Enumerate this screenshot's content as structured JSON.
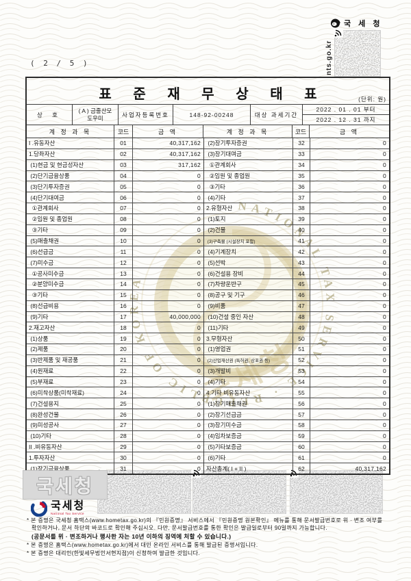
{
  "page": {
    "page_indicator": "( 2 / 5 )",
    "title": "표 준 재 무 상 태 표",
    "unit_label": "(단위: 원)"
  },
  "nts_top": {
    "agency": "국 세 청",
    "url": "nts.go.kr",
    "qr_icon": "qr-code",
    "wifi_icon": "rfid-wave-icon"
  },
  "info": {
    "company_label": "상  호",
    "company_value": "( A ) 금줄산모\n도우미",
    "biz_no_label": "사업자등록번호",
    "biz_no_value": "148-92-00248",
    "period_label": "대상 과세기간",
    "period_from": "2022 . 01 . 01 부터",
    "period_to": "2022 . 12 . 31 까지"
  },
  "table": {
    "header": {
      "account": "계 정 과 목",
      "code": "코드",
      "amount": "금  액"
    },
    "left_rows": [
      {
        "label": "I .유동자산",
        "code": "01",
        "amount": "40,317,162"
      },
      {
        "label": "1.당좌자산",
        "code": "02",
        "amount": "40,317,162"
      },
      {
        "label": " (1)현금 및 현금성자산",
        "code": "03",
        "amount": "317,162"
      },
      {
        "label": " (2)단기금융상품",
        "code": "04",
        "amount": "0"
      },
      {
        "label": " (3)단기투자증권",
        "code": "05",
        "amount": "0"
      },
      {
        "label": " (4)단기대여금",
        "code": "06",
        "amount": "0"
      },
      {
        "label": "  ①관계회사",
        "code": "07",
        "amount": "0"
      },
      {
        "label": "  ②임원 및 종업원",
        "code": "08",
        "amount": "0"
      },
      {
        "label": "  ③기타",
        "code": "09",
        "amount": "0"
      },
      {
        "label": " (5)매출채권",
        "code": "10",
        "amount": "0"
      },
      {
        "label": " (6)선급금",
        "code": "11",
        "amount": "0"
      },
      {
        "label": " (7)미수금",
        "code": "12",
        "amount": "0"
      },
      {
        "label": "  ①공사미수금",
        "code": "13",
        "amount": "0"
      },
      {
        "label": "  ②분양미수금",
        "code": "14",
        "amount": "0"
      },
      {
        "label": "  ③기타",
        "code": "15",
        "amount": "0"
      },
      {
        "label": " (8)선급비용",
        "code": "16",
        "amount": "0"
      },
      {
        "label": " (9)기타",
        "code": "17",
        "amount": "40,000,000"
      },
      {
        "label": "2.재고자산",
        "code": "18",
        "amount": "0"
      },
      {
        "label": " (1)상품",
        "code": "19",
        "amount": "0"
      },
      {
        "label": " (2)제품",
        "code": "20",
        "amount": "0"
      },
      {
        "label": " (3)반제품 및 재공품",
        "code": "21",
        "amount": "0"
      },
      {
        "label": " (4)원재료",
        "code": "22",
        "amount": "0"
      },
      {
        "label": " (5)부재료",
        "code": "23",
        "amount": "0"
      },
      {
        "label": " (6)미착상품(미착재료)",
        "code": "24",
        "amount": "0"
      },
      {
        "label": " (7)건설용지",
        "code": "25",
        "amount": "0"
      },
      {
        "label": " (8)완성건물",
        "code": "26",
        "amount": "0"
      },
      {
        "label": " (9)미성공사",
        "code": "27",
        "amount": "0"
      },
      {
        "label": " (10)기타",
        "code": "28",
        "amount": "0"
      },
      {
        "label": "II .비유동자산",
        "code": "29",
        "amount": "0"
      },
      {
        "label": "1.투자자산",
        "code": "30",
        "amount": "0"
      },
      {
        "label": " (1)장기금융상품",
        "code": "31",
        "amount": "0"
      }
    ],
    "right_rows": [
      {
        "label": " (2)장기투자증권",
        "code": "32",
        "amount": "0"
      },
      {
        "label": " (3)장기대여금",
        "code": "33",
        "amount": "0"
      },
      {
        "label": "  ①관계회사",
        "code": "34",
        "amount": "0"
      },
      {
        "label": "  ②임원 및 종업원",
        "code": "35",
        "amount": "0"
      },
      {
        "label": "  ③기타",
        "code": "36",
        "amount": "0"
      },
      {
        "label": " (4)기타",
        "code": "37",
        "amount": "0"
      },
      {
        "label": "2.유형자산",
        "code": "38",
        "amount": "0"
      },
      {
        "label": " (1)토지",
        "code": "39",
        "amount": "0"
      },
      {
        "label": " (2)건물",
        "code": "40",
        "amount": "0"
      },
      {
        "label": " (3)구축물 (시설장치 포함)",
        "code": "41",
        "amount": "0"
      },
      {
        "label": " (4)기계장치",
        "code": "42",
        "amount": "0"
      },
      {
        "label": " (5)선박",
        "code": "43",
        "amount": "0"
      },
      {
        "label": " (6)건설용 장비",
        "code": "44",
        "amount": "0"
      },
      {
        "label": " (7)차량운반구",
        "code": "45",
        "amount": "0"
      },
      {
        "label": " (8)공구 및 기구",
        "code": "46",
        "amount": "0"
      },
      {
        "label": " (9)비품",
        "code": "47",
        "amount": "0"
      },
      {
        "label": " (10)건설 중인 자산",
        "code": "48",
        "amount": "0"
      },
      {
        "label": " (11)기타",
        "code": "49",
        "amount": "0"
      },
      {
        "label": "3.무형자산",
        "code": "50",
        "amount": "0"
      },
      {
        "label": " (1)영업권",
        "code": "51",
        "amount": "0"
      },
      {
        "label": " (2)산업재산권 (특허권, 상표권 등)",
        "code": "52",
        "amount": "0"
      },
      {
        "label": " (3)개발비",
        "code": "53",
        "amount": "0"
      },
      {
        "label": " (4)기타",
        "code": "54",
        "amount": "0"
      },
      {
        "label": "4.기타 비유동자산",
        "code": "55",
        "amount": "0"
      },
      {
        "label": " (1)장기매출채권",
        "code": "56",
        "amount": "0"
      },
      {
        "label": " (2)장기선급금",
        "code": "57",
        "amount": "0"
      },
      {
        "label": " (3)장기미수금",
        "code": "58",
        "amount": "0"
      },
      {
        "label": " (4)임차보증금",
        "code": "59",
        "amount": "0"
      },
      {
        "label": " (5)기타보증금",
        "code": "60",
        "amount": "0"
      },
      {
        "label": " (6)기타",
        "code": "61",
        "amount": "0"
      },
      {
        "label": "자산총계( I + II )",
        "code": "62",
        "amount": "40,317,162"
      }
    ]
  },
  "stamps": {
    "watermark_text": "국세청",
    "logo_kr": "국세청",
    "logo_en": "National Tax Service",
    "seal_circular_text": "NATIONAL TAX SERVICE · REPUBLIC OF KOREA ·",
    "seal_center_text": "국세청"
  },
  "footer": {
    "note1": "* 본 증명은 국세청 홈택스(www.hometax.go.kr)의 『민원증명』 서비스에서 『민원증명 원본확인』 메뉴를 통해 문서발급번호로 위 · 변조 여부를 확인하거나, 문서 하단의 바코드로 확인해 주십시오. 다만, 문서발급번호를 통한 확인은 발급일로부터 90일까지 가능합니다.",
    "note1_bold": "(공문서를 위 · 변조하거나 행사한 자는 10년 이하의 징역에 처할 수 있습니다.)",
    "note2": "* 본 증명은 홈택스(www.hometax.go.kr)에서 대민 온라인 서비스를 통해 발급된 증명서입니다.",
    "note3": "* 본 증명은 대리인(한빛세무법인서현지점)이 신청하여 발급한 것입니다."
  },
  "colors": {
    "seal_tan": "#d6c99c",
    "logo_blue": "#16418c",
    "logo_red": "#c8102e",
    "border_dark": "#2b2b2b"
  }
}
